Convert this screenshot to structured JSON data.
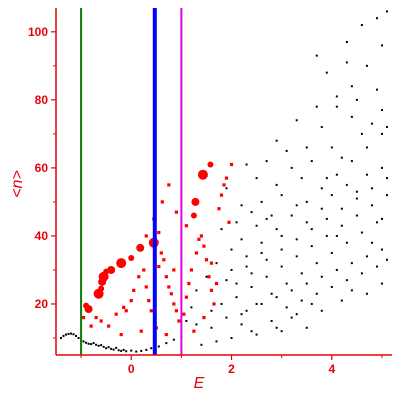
{
  "colors": {
    "axis": "#e8000b",
    "black_points": "#000000",
    "red_points": "#ff0000",
    "line_green": "#0a7d0a",
    "line_blue": "#0000ff",
    "line_magenta": "#e600e6"
  },
  "chart_data": {
    "type": "scatter",
    "xlabel": "E",
    "ylabel": "<n>",
    "xlim": [
      -1.5,
      5.2
    ],
    "ylim": [
      5,
      107
    ],
    "xticks": [
      0,
      2,
      4
    ],
    "yticks": [
      20,
      40,
      60,
      80,
      100
    ],
    "grid": false,
    "vertical_lines": [
      {
        "x": -1.0,
        "color": "green",
        "width": "thin"
      },
      {
        "x": 0.47,
        "color": "blue",
        "width": "thick"
      },
      {
        "x": 1.0,
        "color": "magenta",
        "width": "thin"
      }
    ],
    "red_large_points": [
      [
        -0.9,
        19.5
      ],
      [
        -0.85,
        18.5
      ],
      [
        -0.65,
        23
      ],
      [
        -0.6,
        24.5
      ],
      [
        -0.58,
        26.5
      ],
      [
        -0.55,
        28
      ],
      [
        -0.5,
        29.5
      ],
      [
        -0.4,
        30
      ],
      [
        -0.2,
        32
      ],
      [
        0.0,
        33.5
      ],
      [
        0.18,
        36.5
      ],
      [
        0.45,
        38
      ],
      [
        1.25,
        46
      ],
      [
        1.28,
        50
      ],
      [
        1.43,
        58
      ],
      [
        1.58,
        61
      ]
    ],
    "red_small_points": [
      [
        -0.95,
        16
      ],
      [
        -0.8,
        13.5
      ],
      [
        -0.7,
        16
      ],
      [
        -0.6,
        15
      ],
      [
        -0.45,
        13.5
      ],
      [
        -0.3,
        17
      ],
      [
        -0.15,
        19
      ],
      [
        0.0,
        21
      ],
      [
        -0.1,
        18
      ],
      [
        0.05,
        24
      ],
      [
        0.15,
        28
      ],
      [
        0.25,
        30
      ],
      [
        0.3,
        25
      ],
      [
        0.35,
        21
      ],
      [
        0.4,
        18
      ],
      [
        0.55,
        31
      ],
      [
        0.6,
        35
      ],
      [
        0.65,
        33
      ],
      [
        0.7,
        28
      ],
      [
        0.75,
        25
      ],
      [
        0.8,
        23
      ],
      [
        0.85,
        20
      ],
      [
        0.9,
        18
      ],
      [
        0.95,
        15
      ],
      [
        1.05,
        17
      ],
      [
        1.1,
        22
      ],
      [
        1.15,
        26
      ],
      [
        1.2,
        30
      ],
      [
        1.3,
        35
      ],
      [
        1.35,
        39
      ],
      [
        1.4,
        40
      ],
      [
        1.45,
        37
      ],
      [
        1.5,
        33
      ],
      [
        1.55,
        28
      ],
      [
        1.6,
        24
      ],
      [
        1.65,
        20
      ],
      [
        1.7,
        26
      ],
      [
        1.75,
        48
      ],
      [
        1.8,
        52
      ],
      [
        1.85,
        55
      ],
      [
        1.9,
        57
      ],
      [
        2.0,
        61
      ],
      [
        1.95,
        44
      ],
      [
        0.45,
        45
      ],
      [
        0.62,
        50
      ],
      [
        0.75,
        55
      ],
      [
        0.9,
        47
      ],
      [
        1.1,
        43
      ],
      [
        0.5,
        13
      ],
      [
        0.7,
        11
      ],
      [
        0.2,
        12
      ],
      [
        -0.2,
        11
      ],
      [
        0.85,
        30
      ],
      [
        1.25,
        12
      ],
      [
        1.45,
        16
      ],
      [
        1.6,
        32
      ],
      [
        0.3,
        40
      ],
      [
        0.55,
        41
      ]
    ],
    "black_points": [
      [
        -1.4,
        10
      ],
      [
        -1.35,
        10.6
      ],
      [
        -1.3,
        11
      ],
      [
        -1.25,
        11.2
      ],
      [
        -1.2,
        11.3
      ],
      [
        -1.15,
        11.1
      ],
      [
        -1.1,
        10.6
      ],
      [
        -1.05,
        10
      ],
      [
        -1.0,
        9.3
      ],
      [
        -0.95,
        9
      ],
      [
        -0.9,
        8.6
      ],
      [
        -0.85,
        8.3
      ],
      [
        -0.8,
        8.2
      ],
      [
        -0.75,
        8.5
      ],
      [
        -0.7,
        8
      ],
      [
        -0.65,
        7.7
      ],
      [
        -0.6,
        7.9
      ],
      [
        -0.55,
        7.4
      ],
      [
        -0.5,
        7
      ],
      [
        -0.45,
        7.3
      ],
      [
        -0.4,
        6.8
      ],
      [
        -0.35,
        6.6
      ],
      [
        -0.3,
        7.1
      ],
      [
        -0.25,
        6.4
      ],
      [
        -0.2,
        6.2
      ],
      [
        -0.15,
        6.5
      ],
      [
        -0.1,
        6.1
      ],
      [
        0.0,
        6.3
      ],
      [
        0.1,
        6
      ],
      [
        0.2,
        6.2
      ],
      [
        0.3,
        6.5
      ],
      [
        0.4,
        7
      ],
      [
        0.55,
        7.5
      ],
      [
        0.7,
        8.5
      ],
      [
        0.85,
        9.5
      ],
      [
        1.0,
        10.5
      ],
      [
        2.0,
        10
      ],
      [
        2.5,
        11
      ],
      [
        3.0,
        12
      ],
      [
        3.5,
        13
      ],
      [
        2.2,
        14
      ],
      [
        2.8,
        15
      ],
      [
        1.6,
        13
      ],
      [
        1.9,
        16
      ],
      [
        2.3,
        18
      ],
      [
        2.6,
        20
      ],
      [
        2.9,
        22
      ],
      [
        3.2,
        24
      ],
      [
        3.5,
        26
      ],
      [
        3.8,
        28
      ],
      [
        4.1,
        30
      ],
      [
        4.4,
        32
      ],
      [
        4.7,
        34
      ],
      [
        5.0,
        36
      ],
      [
        2.1,
        22
      ],
      [
        2.4,
        25
      ],
      [
        2.7,
        28
      ],
      [
        3.0,
        31
      ],
      [
        3.3,
        34
      ],
      [
        3.6,
        37
      ],
      [
        3.9,
        40
      ],
      [
        4.2,
        43
      ],
      [
        4.5,
        46
      ],
      [
        4.8,
        49
      ],
      [
        5.1,
        52
      ],
      [
        2.0,
        30
      ],
      [
        2.3,
        34
      ],
      [
        2.6,
        38
      ],
      [
        2.9,
        42
      ],
      [
        3.2,
        46
      ],
      [
        3.5,
        50
      ],
      [
        3.8,
        54
      ],
      [
        4.1,
        58
      ],
      [
        4.4,
        62
      ],
      [
        4.7,
        66
      ],
      [
        5.0,
        70
      ],
      [
        2.6,
        50
      ],
      [
        2.9,
        55
      ],
      [
        3.2,
        60
      ],
      [
        3.5,
        66
      ],
      [
        3.8,
        72
      ],
      [
        4.1,
        78
      ],
      [
        4.4,
        84
      ],
      [
        4.7,
        90
      ],
      [
        5.0,
        96
      ],
      [
        4.3,
        97
      ],
      [
        4.6,
        102
      ],
      [
        4.9,
        104
      ],
      [
        5.1,
        106
      ],
      [
        3.7,
        93
      ],
      [
        3.9,
        88
      ],
      [
        4.3,
        91
      ],
      [
        4.5,
        80
      ],
      [
        4.9,
        83
      ],
      [
        5.0,
        77
      ],
      [
        4.8,
        73
      ],
      [
        5.1,
        72
      ],
      [
        4.6,
        70
      ],
      [
        4.2,
        63
      ],
      [
        4.0,
        66
      ],
      [
        3.6,
        62
      ],
      [
        3.4,
        57
      ],
      [
        3.0,
        52
      ],
      [
        2.8,
        46
      ],
      [
        2.5,
        43
      ],
      [
        2.2,
        39
      ],
      [
        2.0,
        36
      ],
      [
        1.8,
        42
      ],
      [
        1.7,
        32
      ],
      [
        1.5,
        28
      ],
      [
        1.3,
        24
      ],
      [
        1.2,
        19
      ],
      [
        1.1,
        15
      ],
      [
        1.3,
        14
      ],
      [
        1.6,
        18
      ],
      [
        1.8,
        20
      ],
      [
        2.1,
        26
      ],
      [
        2.4,
        29
      ],
      [
        2.7,
        33
      ],
      [
        3.0,
        36
      ],
      [
        3.3,
        39
      ],
      [
        3.6,
        42
      ],
      [
        3.9,
        45
      ],
      [
        4.2,
        48
      ],
      [
        4.5,
        51
      ],
      [
        4.8,
        54
      ],
      [
        5.1,
        57
      ],
      [
        5.0,
        60
      ],
      [
        4.9,
        44
      ],
      [
        4.6,
        41
      ],
      [
        4.3,
        38
      ],
      [
        4.0,
        35
      ],
      [
        3.7,
        32
      ],
      [
        3.4,
        29
      ],
      [
        3.1,
        26
      ],
      [
        2.8,
        23
      ],
      [
        2.5,
        20
      ],
      [
        2.2,
        17
      ],
      [
        3.1,
        19
      ],
      [
        3.4,
        21
      ],
      [
        3.7,
        23
      ],
      [
        4.0,
        25
      ],
      [
        4.3,
        27
      ],
      [
        4.6,
        29
      ],
      [
        4.9,
        31
      ],
      [
        5.1,
        33
      ],
      [
        3.2,
        16
      ],
      [
        3.8,
        18
      ],
      [
        4.2,
        21
      ],
      [
        4.7,
        23
      ],
      [
        5.0,
        26
      ],
      [
        2.9,
        68
      ],
      [
        3.3,
        74
      ],
      [
        2.3,
        61
      ],
      [
        2.5,
        57
      ],
      [
        2.7,
        62
      ],
      [
        3.1,
        65
      ],
      [
        3.7,
        78
      ],
      [
        4.1,
        81
      ],
      [
        4.4,
        75
      ],
      [
        1.9,
        54
      ],
      [
        2.2,
        49
      ],
      [
        2.4,
        47
      ],
      [
        3.9,
        57
      ],
      [
        4.3,
        55
      ],
      [
        4.7,
        58
      ],
      [
        1.4,
        8
      ],
      [
        1.7,
        9
      ],
      [
        2.4,
        12
      ],
      [
        3.3,
        17
      ],
      [
        2.9,
        13
      ],
      [
        3.6,
        20
      ],
      [
        4.4,
        24
      ],
      [
        4.8,
        38
      ],
      [
        4.1,
        40
      ],
      [
        3.5,
        44
      ],
      [
        3.0,
        40
      ],
      [
        2.6,
        35
      ],
      [
        2.3,
        31
      ],
      [
        1.9,
        27
      ],
      [
        3.8,
        48
      ],
      [
        4.5,
        53
      ],
      [
        5.0,
        45
      ],
      [
        4.0,
        52
      ],
      [
        3.3,
        49
      ],
      [
        2.7,
        45
      ],
      [
        2.1,
        44
      ]
    ]
  }
}
